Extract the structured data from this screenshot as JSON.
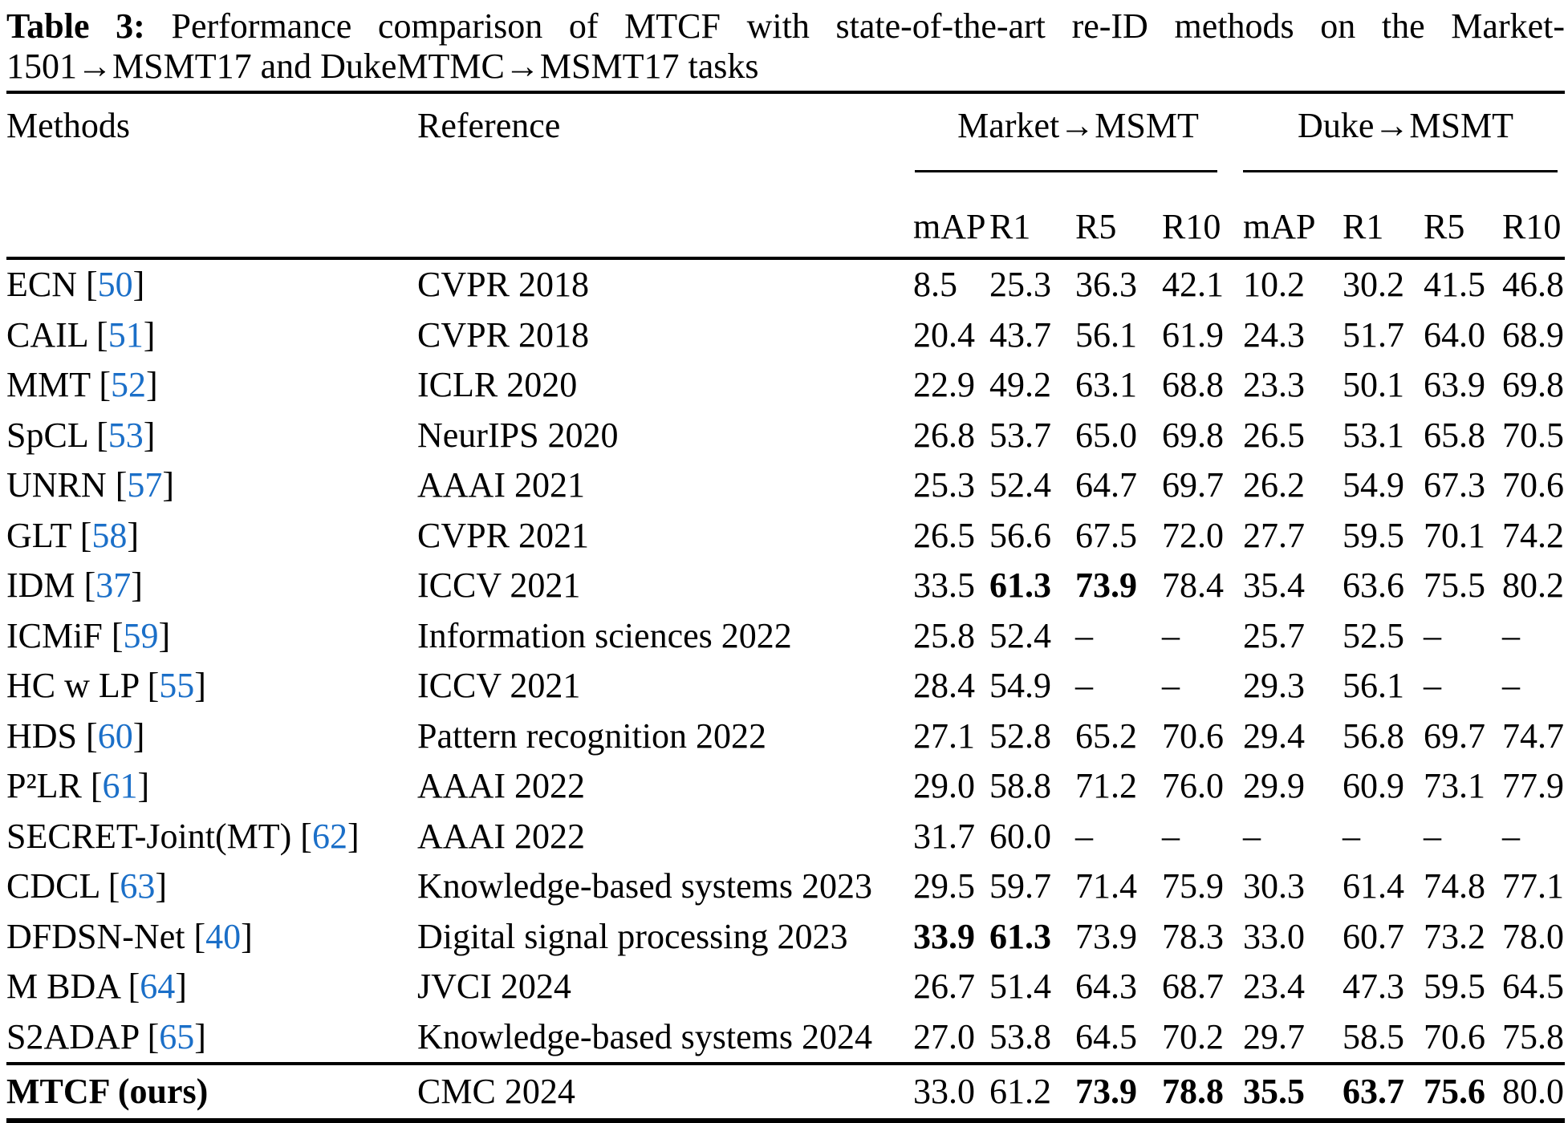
{
  "caption": {
    "label": "Table 3:",
    "line1_rest": "Performance comparison of MTCF with state-of-the-art re-ID methods on the Market-",
    "line2": "1501→MSMT17 and DukeMTMC→MSMT17 tasks"
  },
  "header": {
    "methods": "Methods",
    "reference": "Reference",
    "group_market": "Market→MSMT",
    "group_duke": "Duke→MSMT",
    "metrics": [
      "mAP",
      "R1",
      "R5",
      "R10",
      "mAP",
      "R1",
      "R5",
      "R10"
    ]
  },
  "citation_format": {
    "open": "[",
    "close": "]"
  },
  "colors": {
    "citation_blue": "#1b6fc8",
    "text": "#000000",
    "background": "#ffffff"
  },
  "rows": [
    {
      "method": "ECN",
      "cite": "50",
      "reference": "CVPR 2018",
      "values": [
        "8.5",
        "25.3",
        "36.3",
        "42.1",
        "10.2",
        "30.2",
        "41.5",
        "46.8"
      ],
      "bold": []
    },
    {
      "method": "CAIL",
      "cite": "51",
      "reference": "CVPR 2018",
      "values": [
        "20.4",
        "43.7",
        "56.1",
        "61.9",
        "24.3",
        "51.7",
        "64.0",
        "68.9"
      ],
      "bold": []
    },
    {
      "method": "MMT",
      "cite": "52",
      "reference": "ICLR 2020",
      "values": [
        "22.9",
        "49.2",
        "63.1",
        "68.8",
        "23.3",
        "50.1",
        "63.9",
        "69.8"
      ],
      "bold": []
    },
    {
      "method": "SpCL",
      "cite": "53",
      "reference": "NeurIPS 2020",
      "values": [
        "26.8",
        "53.7",
        "65.0",
        "69.8",
        "26.5",
        "53.1",
        "65.8",
        "70.5"
      ],
      "bold": []
    },
    {
      "method": "UNRN",
      "cite": "57",
      "reference": "AAAI 2021",
      "values": [
        "25.3",
        "52.4",
        "64.7",
        "69.7",
        "26.2",
        "54.9",
        "67.3",
        "70.6"
      ],
      "bold": []
    },
    {
      "method": "GLT",
      "cite": "58",
      "reference": "CVPR 2021",
      "values": [
        "26.5",
        "56.6",
        "67.5",
        "72.0",
        "27.7",
        "59.5",
        "70.1",
        "74.2"
      ],
      "bold": []
    },
    {
      "method": "IDM",
      "cite": "37",
      "reference": "ICCV 2021",
      "values": [
        "33.5",
        "61.3",
        "73.9",
        "78.4",
        "35.4",
        "63.6",
        "75.5",
        "80.2"
      ],
      "bold": [
        1,
        2
      ]
    },
    {
      "method": "ICMiF",
      "cite": "59",
      "reference": "Information sciences 2022",
      "values": [
        "25.8",
        "52.4",
        "–",
        "–",
        "25.7",
        "52.5",
        "–",
        "–"
      ],
      "bold": []
    },
    {
      "method": "HC w LP",
      "cite": "55",
      "reference": "ICCV 2021",
      "values": [
        "28.4",
        "54.9",
        "–",
        "–",
        "29.3",
        "56.1",
        "–",
        "–"
      ],
      "bold": []
    },
    {
      "method": "HDS",
      "cite": "60",
      "reference": "Pattern recognition 2022",
      "values": [
        "27.1",
        "52.8",
        "65.2",
        "70.6",
        "29.4",
        "56.8",
        "69.7",
        "74.7"
      ],
      "bold": []
    },
    {
      "method": "P²LR",
      "cite": "61",
      "reference": "AAAI 2022",
      "values": [
        "29.0",
        "58.8",
        "71.2",
        "76.0",
        "29.9",
        "60.9",
        "73.1",
        "77.9"
      ],
      "bold": []
    },
    {
      "method": "SECRET-Joint(MT)",
      "cite": "62",
      "reference": "AAAI 2022",
      "values": [
        "31.7",
        "60.0",
        "–",
        "–",
        "–",
        "–",
        "–",
        "–"
      ],
      "bold": []
    },
    {
      "method": "CDCL",
      "cite": "63",
      "reference": "Knowledge-based systems 2023",
      "values": [
        "29.5",
        "59.7",
        "71.4",
        "75.9",
        "30.3",
        "61.4",
        "74.8",
        "77.1"
      ],
      "bold": []
    },
    {
      "method": "DFDSN-Net",
      "cite": "40",
      "reference": "Digital signal processing 2023",
      "values": [
        "33.9",
        "61.3",
        "73.9",
        "78.3",
        "33.0",
        "60.7",
        "73.2",
        "78.0"
      ],
      "bold": [
        0,
        1
      ]
    },
    {
      "method": "M BDA",
      "cite": "64",
      "reference": "JVCI 2024",
      "values": [
        "26.7",
        "51.4",
        "64.3",
        "68.7",
        "23.4",
        "47.3",
        "59.5",
        "64.5"
      ],
      "bold": []
    },
    {
      "method": "S2ADAP",
      "cite": "65",
      "reference": "Knowledge-based systems 2024",
      "values": [
        "27.0",
        "53.8",
        "64.5",
        "70.2",
        "29.7",
        "58.5",
        "70.6",
        "75.8"
      ],
      "bold": []
    }
  ],
  "final_row": {
    "method": "MTCF (ours)",
    "cite": null,
    "reference": "CMC 2024",
    "values": [
      "33.0",
      "61.2",
      "73.9",
      "78.8",
      "35.5",
      "63.7",
      "75.6",
      "80.0"
    ],
    "bold": [
      2,
      3,
      4,
      5,
      6
    ]
  }
}
